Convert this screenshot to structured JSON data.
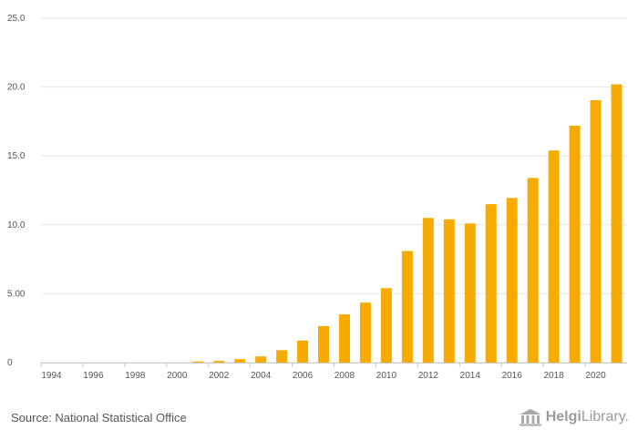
{
  "chart_data": {
    "type": "bar",
    "title": "",
    "xlabel": "",
    "ylabel": "",
    "ylim": [
      0,
      25
    ],
    "yticks": [
      {
        "value": 0,
        "label": "0"
      },
      {
        "value": 5,
        "label": "5.00"
      },
      {
        "value": 10,
        "label": "10.0"
      },
      {
        "value": 15,
        "label": "15.0"
      },
      {
        "value": 20,
        "label": "20.0"
      },
      {
        "value": 25,
        "label": "25.0"
      }
    ],
    "categories": [
      "1994",
      "1995",
      "1996",
      "1997",
      "1998",
      "1999",
      "2000",
      "2001",
      "2002",
      "2003",
      "2004",
      "2005",
      "2006",
      "2007",
      "2008",
      "2009",
      "2010",
      "2011",
      "2012",
      "2013",
      "2014",
      "2015",
      "2016",
      "2017",
      "2018",
      "2019",
      "2020",
      "2021"
    ],
    "xtick_labels": [
      "1994",
      "1996",
      "1998",
      "2000",
      "2002",
      "2004",
      "2006",
      "2008",
      "2010",
      "2012",
      "2014",
      "2016",
      "2018",
      "2020"
    ],
    "values": [
      0,
      0,
      0,
      0,
      0,
      0,
      0,
      0.08,
      0.12,
      0.25,
      0.45,
      0.9,
      1.6,
      2.65,
      3.5,
      4.35,
      5.4,
      8.1,
      10.5,
      10.4,
      10.1,
      11.5,
      11.95,
      13.4,
      15.4,
      17.2,
      19.05,
      20.2
    ],
    "grid": true,
    "bar_color": "#f7ab00"
  },
  "footer": {
    "source": "Source: National Statistical Office"
  },
  "logo": {
    "bold": "Helgi",
    "light": "Library."
  }
}
